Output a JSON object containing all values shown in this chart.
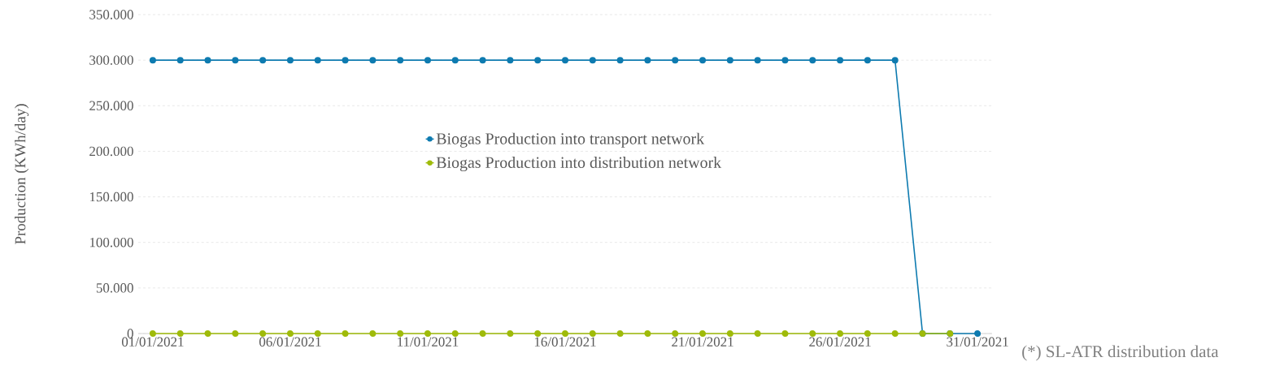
{
  "chart_data": {
    "type": "line",
    "ylabel": "Production (KWh/day)",
    "categories": [
      "01/01/2021",
      null,
      null,
      null,
      null,
      "06/01/2021",
      null,
      null,
      null,
      null,
      "11/01/2021",
      null,
      null,
      null,
      null,
      "16/01/2021",
      null,
      null,
      null,
      null,
      "21/01/2021",
      null,
      null,
      null,
      null,
      "26/01/2021",
      null,
      null,
      null,
      null,
      "31/01/2021"
    ],
    "series": [
      {
        "name": "Biogas Production into transport network",
        "color": "#0e7bb0",
        "values": [
          300000,
          300000,
          300000,
          300000,
          300000,
          300000,
          300000,
          300000,
          300000,
          300000,
          300000,
          300000,
          300000,
          300000,
          300000,
          300000,
          300000,
          300000,
          300000,
          300000,
          300000,
          300000,
          300000,
          300000,
          300000,
          300000,
          300000,
          300000,
          0,
          0,
          0
        ]
      },
      {
        "name": "Biogas Production into distribution network",
        "color": "#9fbb0a",
        "values": [
          0,
          0,
          0,
          0,
          0,
          0,
          0,
          0,
          0,
          0,
          0,
          0,
          0,
          0,
          0,
          0,
          0,
          0,
          0,
          0,
          0,
          0,
          0,
          0,
          0,
          0,
          0,
          0,
          0,
          0,
          null
        ]
      }
    ],
    "ylim": [
      0,
      350000
    ],
    "yticks": [
      {
        "value": 0,
        "label": "0"
      },
      {
        "value": 50000,
        "label": "50.000"
      },
      {
        "value": 100000,
        "label": "100.000"
      },
      {
        "value": 150000,
        "label": "150.000"
      },
      {
        "value": 200000,
        "label": "200.000"
      },
      {
        "value": 250000,
        "label": "250.000"
      },
      {
        "value": 300000,
        "label": "300.000"
      },
      {
        "value": 350000,
        "label": "350.000"
      }
    ],
    "grid": "y",
    "legend": "center",
    "marker": "circle",
    "line_style": "solid",
    "annotations": [
      "(*) SL-ATR distribution data"
    ]
  }
}
